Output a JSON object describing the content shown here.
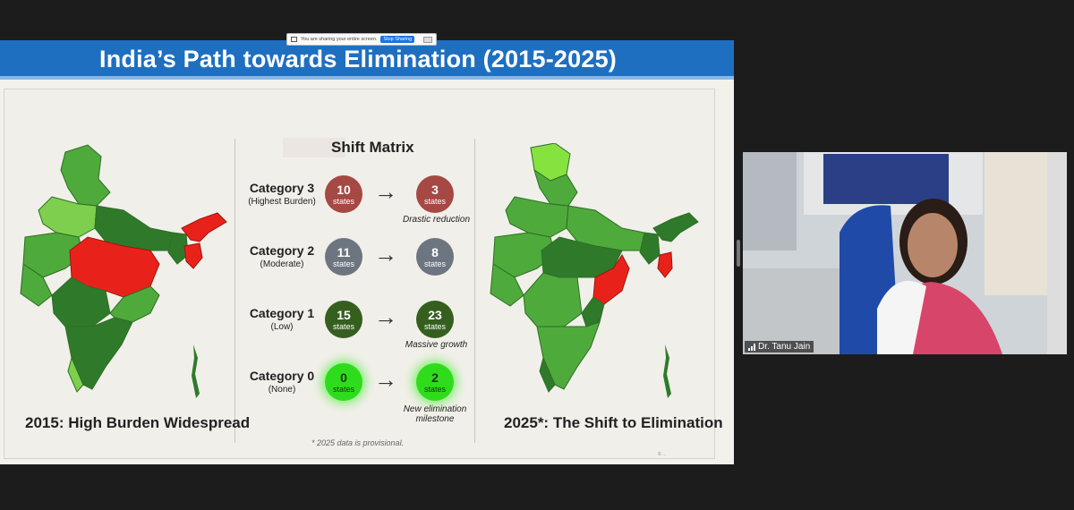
{
  "slide": {
    "title": "India’s Path towards Elimination (2015-2025)",
    "share_bar": {
      "text": "You are sharing your entire screen.",
      "stop_label": "Stop Sharing"
    },
    "left_caption": "2015: High Burden Widespread",
    "right_caption": "2025*: The Shift to Elimination",
    "footnote": "* 2025 data is provisional.",
    "corner_text": "© ..."
  },
  "shift_matrix": {
    "title": "Shift Matrix",
    "unit_label": "states",
    "rows": [
      {
        "category": "Category 3",
        "sub": "(Highest Burden)",
        "from": "10",
        "to": "3",
        "note": "Drastic reduction"
      },
      {
        "category": "Category 2",
        "sub": "(Moderate)",
        "from": "11",
        "to": "8",
        "note": ""
      },
      {
        "category": "Category 1",
        "sub": "(Low)",
        "from": "15",
        "to": "23",
        "note": "Massive growth"
      },
      {
        "category": "Category 0",
        "sub": "(None)",
        "from": "0",
        "to": "2",
        "note": "New elimination milestone"
      }
    ],
    "arrow": "→"
  },
  "colors": {
    "title_bar": "#1f6fc1",
    "cat3": "#a64844",
    "cat2": "#6d7580",
    "cat1": "#355f1f",
    "cat0": "#2fdc1c",
    "map_dark": "#2f7a2a",
    "map_mid": "#4faa3c",
    "map_light": "#7ecf4d",
    "map_red": "#e8221a"
  },
  "webcam": {
    "participant_name": "Dr. Tanu Jain",
    "signal_icon": "signal-bars-icon"
  }
}
